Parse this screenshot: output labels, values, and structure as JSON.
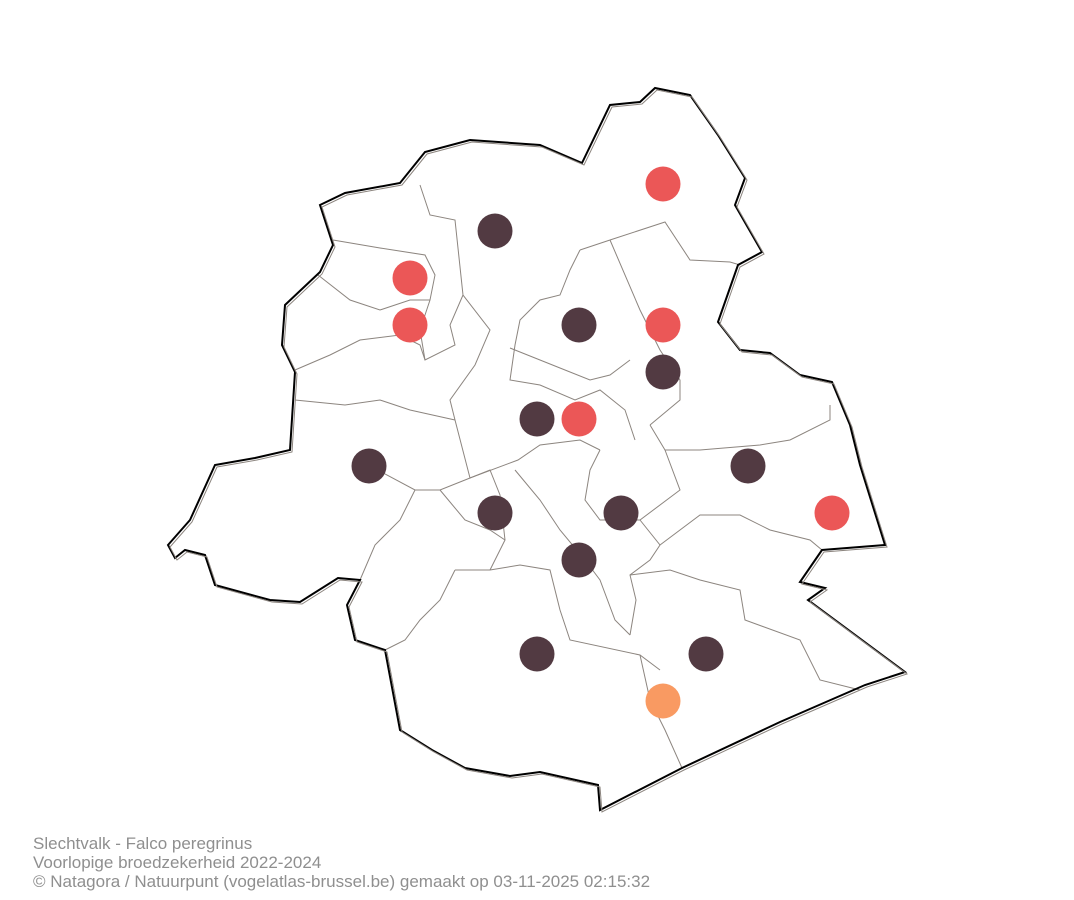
{
  "map": {
    "region": "Brussels",
    "status_colors": {
      "dark": "#523a42",
      "red": "#eb5757",
      "orange": "#f99a62"
    },
    "outline_color": "#000000",
    "boundary_color": "#8c857f",
    "points": [
      {
        "status": "red"
      },
      {
        "status": "dark"
      },
      {
        "status": "red"
      },
      {
        "status": "red"
      },
      {
        "status": "dark"
      },
      {
        "status": "red"
      },
      {
        "status": "dark"
      },
      {
        "status": "dark"
      },
      {
        "status": "red"
      },
      {
        "status": "dark"
      },
      {
        "status": "dark"
      },
      {
        "status": "red"
      },
      {
        "status": "dark"
      },
      {
        "status": "dark"
      },
      {
        "status": "dark"
      },
      {
        "status": "dark"
      },
      {
        "status": "dark"
      },
      {
        "status": "orange"
      }
    ]
  },
  "caption": {
    "line1": "Slechtvalk - Falco peregrinus",
    "line2": "Voorlopige broedzekerheid 2022-2024",
    "line3": "© Natagora / Natuurpunt (vogelatlas-brussel.be) gemaakt op 03-11-2025 02:15:32"
  }
}
